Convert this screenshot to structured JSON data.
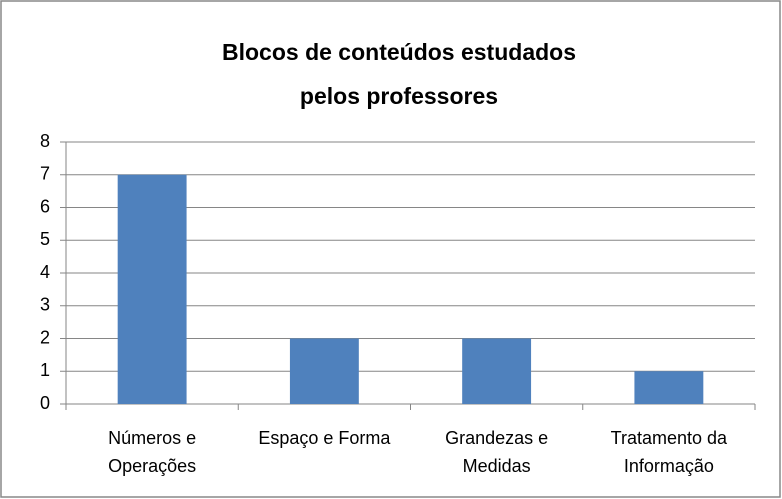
{
  "chart_data": {
    "type": "bar",
    "title": "Blocos de conteúdos estudados pelos professores",
    "categories": [
      "Números e Operações",
      "Espaço e Forma",
      "Grandezas e Medidas",
      "Tratamento da Informação"
    ],
    "values": [
      7,
      2,
      2,
      1
    ],
    "color": "#4f81bd",
    "ylim": [
      0,
      8
    ],
    "yticks": [
      0,
      1,
      2,
      3,
      4,
      5,
      6,
      7,
      8
    ],
    "grid": true
  }
}
